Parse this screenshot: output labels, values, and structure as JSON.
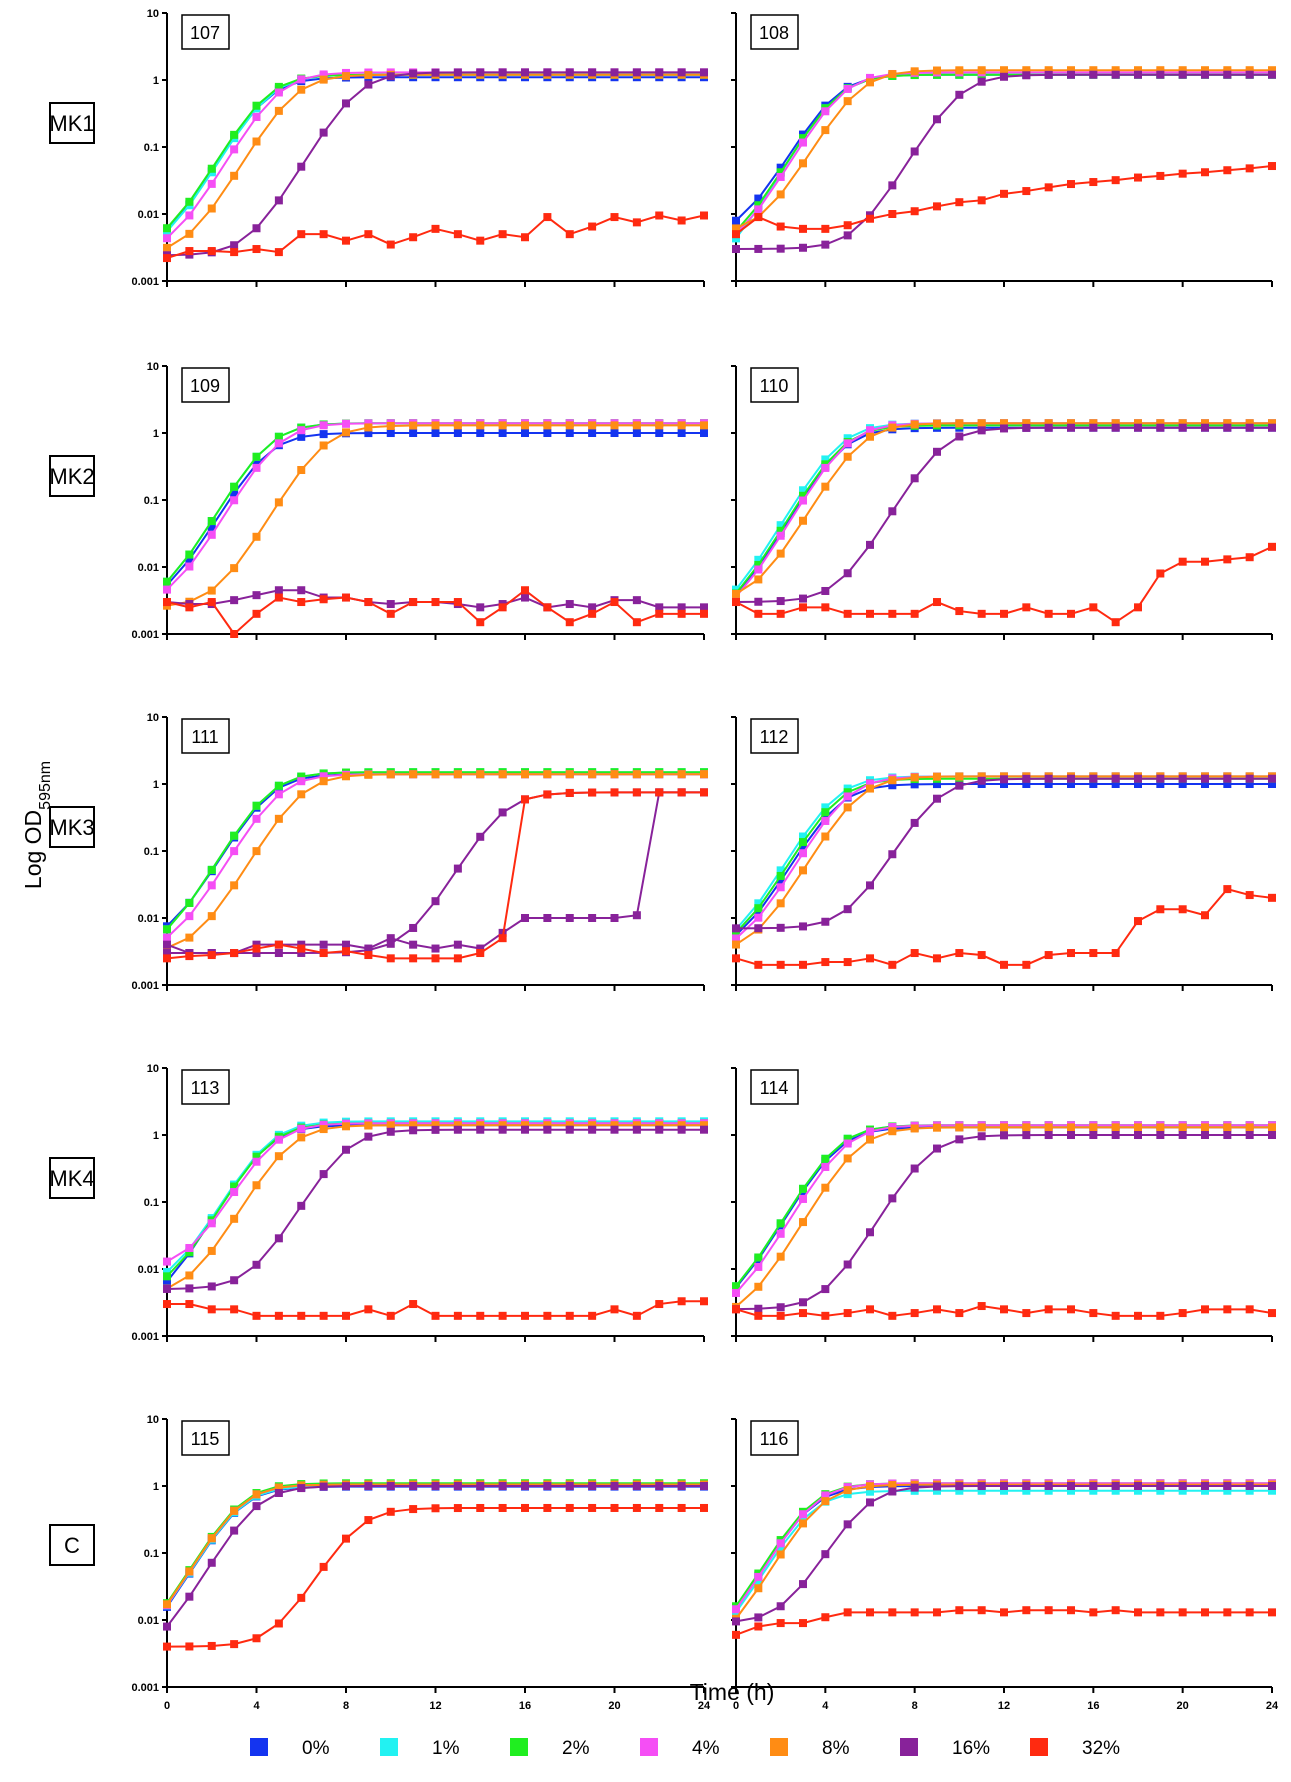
{
  "chart_data": {
    "type": "line",
    "ylabel": "Log OD",
    "ylabel_sub": "595nm",
    "xlabel": "Time (h)",
    "x_ticks": [
      "0",
      "4",
      "8",
      "12",
      "16",
      "20",
      "24"
    ],
    "y_ticks": [
      "0.001",
      "0.01",
      "0.1",
      "1",
      "10"
    ],
    "xlim": [
      0,
      24
    ],
    "ylim": [
      0.001,
      10
    ],
    "y_scale": "log",
    "legend_position": "bottom",
    "series_legend": [
      {
        "name": "0%",
        "color": "#1434f0"
      },
      {
        "name": "1%",
        "color": "#22f2f2"
      },
      {
        "name": "2%",
        "color": "#20ee20"
      },
      {
        "name": "4%",
        "color": "#f54ef5"
      },
      {
        "name": "8%",
        "color": "#ff8c14"
      },
      {
        "name": "16%",
        "color": "#88229a"
      },
      {
        "name": "32%",
        "color": "#ff2a10"
      }
    ],
    "row_labels": [
      "MK1",
      "MK2",
      "MK3",
      "MK4",
      "C"
    ],
    "panels": [
      {
        "label": "107",
        "params": [
          [
            4.5,
            1.1,
            0.0024
          ],
          [
            4.6,
            1.2,
            0.0025
          ],
          [
            4.5,
            1.2,
            0.0027
          ],
          [
            5.0,
            1.3,
            0.0024
          ],
          [
            5.7,
            1.2,
            0.0024
          ],
          [
            8.5,
            1.3,
            0.0024
          ]
        ],
        "flat32": [
          0.0022,
          0.0028,
          0.0028,
          0.0027,
          0.003,
          0.0027,
          0.005,
          0.005,
          0.004,
          0.005,
          0.0035,
          0.0045,
          0.006,
          0.005,
          0.004,
          0.005,
          0.0045,
          0.009,
          0.005,
          0.0065,
          0.009,
          0.0075,
          0.0095,
          0.008,
          0.0095
        ]
      },
      {
        "label": "108",
        "params": [
          [
            4.5,
            1.2,
            0.0045
          ],
          [
            4.6,
            1.2,
            0.0013
          ],
          [
            4.6,
            1.2,
            0.0025
          ],
          [
            4.8,
            1.3,
            0.0025
          ],
          [
            5.5,
            1.4,
            0.005
          ],
          [
            10.0,
            1.2,
            0.003
          ]
        ],
        "flat32": [
          0.005,
          0.009,
          0.0065,
          0.006,
          0.006,
          0.0068,
          0.0085,
          0.01,
          0.011,
          0.013,
          0.015,
          0.016,
          0.02,
          0.022,
          0.025,
          0.028,
          0.03,
          0.032,
          0.035,
          0.037,
          0.04,
          0.042,
          0.045,
          0.048,
          0.052,
          0.055,
          0.06,
          0.062
        ]
      },
      {
        "label": "109",
        "params": [
          [
            4.5,
            1.0,
            0.0025
          ],
          [
            4.6,
            1.4,
            0.0025
          ],
          [
            4.6,
            1.4,
            0.0025
          ],
          [
            5.0,
            1.4,
            0.0025
          ],
          [
            7.0,
            1.3,
            0.0025
          ]
        ],
        "flat16": [
          0.003,
          0.0028,
          0.0028,
          0.0032,
          0.0038,
          0.0045,
          0.0045,
          0.0035,
          0.0035,
          0.003,
          0.0028,
          0.003,
          0.003,
          0.0028,
          0.0025,
          0.0028,
          0.0035,
          0.0025,
          0.0028,
          0.0025,
          0.0032,
          0.0032,
          0.0025,
          0.0025,
          0.0025
        ],
        "flat32": [
          0.003,
          0.0025,
          0.003,
          0.001,
          0.002,
          0.0035,
          0.003,
          0.0033,
          0.0035,
          0.003,
          0.002,
          0.003,
          0.003,
          0.003,
          0.0015,
          0.0025,
          0.0045,
          0.0025,
          0.0015,
          0.002,
          0.003,
          0.0015,
          0.002,
          0.002,
          0.002
        ]
      },
      {
        "label": "110",
        "params": [
          [
            4.8,
            1.2,
            0.0015
          ],
          [
            4.7,
            1.4,
            0.0015
          ],
          [
            4.8,
            1.3,
            0.0015
          ],
          [
            5.0,
            1.4,
            0.0015
          ],
          [
            5.6,
            1.4,
            0.003
          ],
          [
            9.2,
            1.2,
            0.003
          ]
        ],
        "flat32": [
          0.003,
          0.002,
          0.002,
          0.0025,
          0.0025,
          0.002,
          0.002,
          0.002,
          0.002,
          0.003,
          0.0022,
          0.002,
          0.002,
          0.0025,
          0.002,
          0.002,
          0.0025,
          0.0015,
          0.0025,
          0.008,
          0.012,
          0.012,
          0.013,
          0.014,
          0.02,
          0.022,
          0.024,
          0.027
        ]
      },
      {
        "label": "111",
        "params": [
          [
            4.6,
            1.4,
            0.004
          ],
          [
            4.6,
            1.5,
            0.003
          ],
          [
            4.6,
            1.5,
            0.003
          ],
          [
            5.0,
            1.4,
            0.003
          ],
          [
            6.0,
            1.4,
            0.003
          ],
          [
            15.0,
            0.75,
            0.003
          ]
        ],
        "flat16": [
          0.004,
          0.003,
          0.003,
          0.003,
          0.004,
          0.004,
          0.004,
          0.004,
          0.004,
          0.0035,
          0.005,
          0.004,
          0.0035,
          0.004,
          0.0035,
          0.006,
          0.01,
          0.01,
          0.01,
          0.01,
          0.01,
          0.011
        ],
        "flat32": [
          0.0025,
          0.0027,
          0.0028,
          0.003,
          0.0035,
          0.004,
          0.0035,
          0.003,
          0.0032,
          0.0028,
          0.0025,
          0.0025,
          0.0025,
          0.0025,
          0.003,
          0.005
        ]
      },
      {
        "label": "112",
        "params": [
          [
            4.6,
            1.0,
            0.003
          ],
          [
            4.5,
            1.3,
            0.003
          ],
          [
            4.6,
            1.2,
            0.003
          ],
          [
            5.0,
            1.3,
            0.003
          ],
          [
            5.5,
            1.3,
            0.003
          ],
          [
            9.0,
            1.2,
            0.007
          ]
        ],
        "flat32": [
          0.0025,
          0.002,
          0.002,
          0.002,
          0.0022,
          0.0022,
          0.0025,
          0.002,
          0.003,
          0.0025,
          0.003,
          0.0028,
          0.002,
          0.002,
          0.0028,
          0.003,
          0.003,
          0.003,
          0.009,
          0.0135,
          0.0135,
          0.011,
          0.027,
          0.022,
          0.02,
          0.033,
          0.028,
          0.035,
          0.029
        ]
      },
      {
        "label": "113",
        "params": [
          [
            4.5,
            1.4,
            0.0025
          ],
          [
            4.6,
            1.6,
            0.005
          ],
          [
            4.6,
            1.5,
            0.004
          ],
          [
            4.8,
            1.5,
            0.01
          ],
          [
            5.5,
            1.4,
            0.004
          ],
          [
            8.0,
            1.2,
            0.005
          ]
        ],
        "flat32": [
          0.003,
          0.003,
          0.0025,
          0.0025,
          0.002,
          0.002,
          0.002,
          0.002,
          0.002,
          0.0025,
          0.002,
          0.003,
          0.002,
          0.002,
          0.002,
          0.002,
          0.002,
          0.002,
          0.002,
          0.002,
          0.0025,
          0.002,
          0.003,
          0.0033,
          0.0033,
          0.0033,
          0.0033
        ]
      },
      {
        "label": "114",
        "params": [
          [
            4.6,
            1.3,
            0.002
          ],
          [
            4.6,
            1.4,
            0.002
          ],
          [
            4.6,
            1.4,
            0.002
          ],
          [
            4.9,
            1.4,
            0.002
          ],
          [
            5.5,
            1.3,
            0.0017
          ],
          [
            8.6,
            1.0,
            0.0025
          ]
        ],
        "flat32": [
          0.0025,
          0.002,
          0.002,
          0.0022,
          0.002,
          0.0022,
          0.0025,
          0.002,
          0.0022,
          0.0025,
          0.0022,
          0.0028,
          0.0025,
          0.0022,
          0.0025,
          0.0025,
          0.0022,
          0.002,
          0.002,
          0.002,
          0.0022,
          0.0025,
          0.0025,
          0.0025,
          0.0022,
          0.002,
          0.002,
          0.0025
        ]
      },
      {
        "label": "115",
        "params": [
          [
            3.3,
            0.98,
            0.0025
          ],
          [
            3.3,
            1.0,
            0.003
          ],
          [
            3.3,
            1.1,
            0.003
          ],
          [
            3.3,
            1.05,
            0.0025
          ],
          [
            3.3,
            1.05,
            0.003
          ],
          [
            4.0,
            1.0,
            0.0025
          ],
          [
            8.5,
            0.47,
            0.004
          ]
        ]
      },
      {
        "label": "116",
        "params": [
          [
            3.4,
            1.0,
            0.004
          ],
          [
            3.4,
            0.85,
            0.003
          ],
          [
            3.4,
            1.1,
            0.003
          ],
          [
            3.5,
            1.1,
            0.003
          ],
          [
            3.8,
            1.05,
            0.003
          ],
          [
            5.8,
            1.0,
            0.009
          ]
        ],
        "flat32": [
          0.006,
          0.008,
          0.009,
          0.009,
          0.011,
          0.013,
          0.013,
          0.013,
          0.013,
          0.013,
          0.014,
          0.014,
          0.013,
          0.014,
          0.014,
          0.014,
          0.013,
          0.014,
          0.013,
          0.013,
          0.013,
          0.013,
          0.013,
          0.013,
          0.013
        ]
      }
    ]
  }
}
